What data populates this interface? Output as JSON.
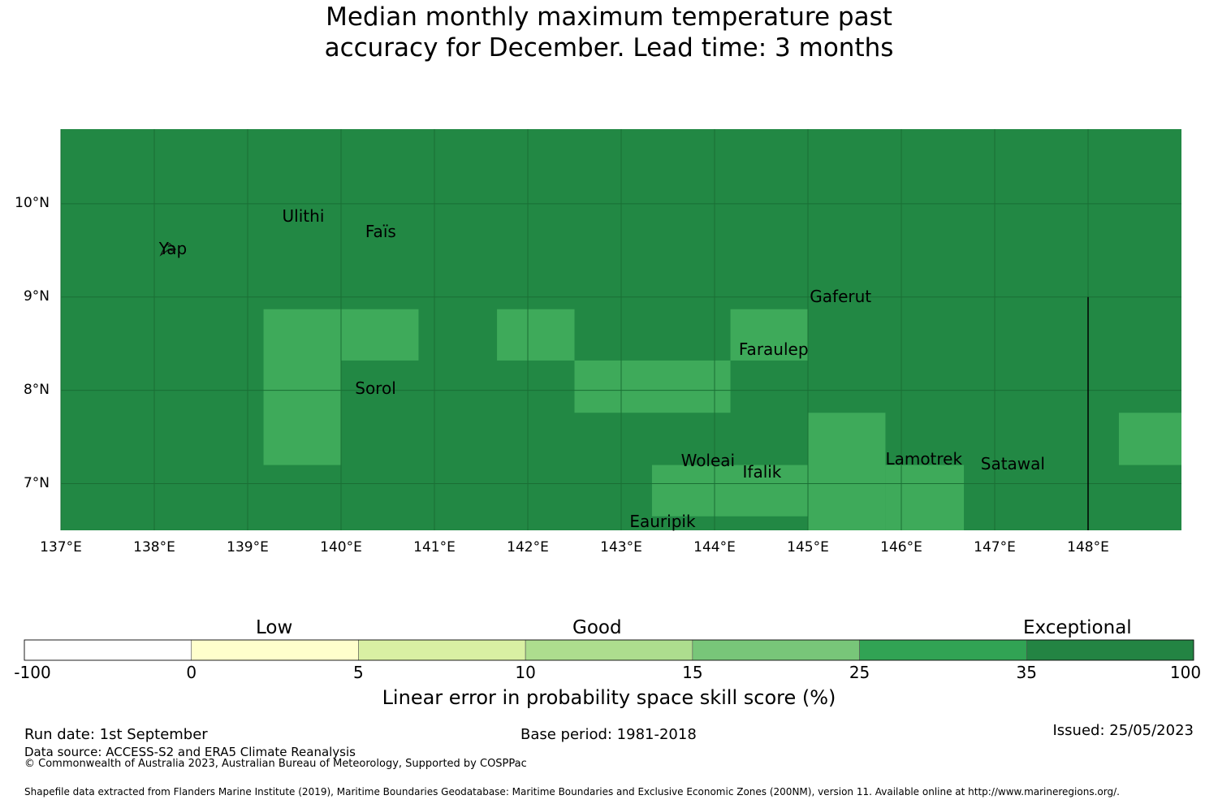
{
  "title": {
    "line1": "Median monthly maximum temperature past",
    "line2": "accuracy for December. Lead time: 3 months"
  },
  "map": {
    "lon_range": [
      137.0,
      149.0
    ],
    "lat_range": [
      6.5,
      10.8
    ],
    "lat_ticks": [
      {
        "value": 10,
        "label": "10°N"
      },
      {
        "value": 9,
        "label": "9°N"
      },
      {
        "value": 8,
        "label": "8°N"
      },
      {
        "value": 7,
        "label": "7°N"
      }
    ],
    "lon_ticks": [
      {
        "value": 137,
        "label": "137°E"
      },
      {
        "value": 138,
        "label": "138°E"
      },
      {
        "value": 139,
        "label": "139°E"
      },
      {
        "value": 140,
        "label": "140°E"
      },
      {
        "value": 141,
        "label": "141°E"
      },
      {
        "value": 142,
        "label": "142°E"
      },
      {
        "value": 143,
        "label": "143°E"
      },
      {
        "value": 144,
        "label": "144°E"
      },
      {
        "value": 145,
        "label": "145°E"
      },
      {
        "value": 146,
        "label": "146°E"
      },
      {
        "value": 147,
        "label": "147°E"
      },
      {
        "value": 148,
        "label": "148°E"
      }
    ],
    "background_category": "Exceptional (35-100)",
    "background_color": "#228844",
    "cell_color": "#3eaa5a",
    "grid_line_color": "#1a6e34",
    "cells_25_to_35": [
      {
        "lon": [
          139.17,
          140.0
        ],
        "lat": [
          7.2,
          8.87
        ]
      },
      {
        "lon": [
          140.0,
          140.83
        ],
        "lat": [
          8.32,
          8.87
        ]
      },
      {
        "lon": [
          141.67,
          142.5
        ],
        "lat": [
          8.32,
          8.87
        ]
      },
      {
        "lon": [
          142.5,
          144.17
        ],
        "lat": [
          7.76,
          8.32
        ]
      },
      {
        "lon": [
          144.17,
          145.0
        ],
        "lat": [
          8.32,
          8.87
        ]
      },
      {
        "lon": [
          145.0,
          145.83
        ],
        "lat": [
          6.5,
          7.76
        ]
      },
      {
        "lon": [
          145.83,
          146.67
        ],
        "lat": [
          6.5,
          7.2
        ]
      },
      {
        "lon": [
          143.33,
          145.0
        ],
        "lat": [
          6.65,
          7.2
        ]
      },
      {
        "lon": [
          148.33,
          149.0
        ],
        "lat": [
          7.2,
          7.76
        ]
      }
    ],
    "boundary_line": {
      "lon": 148.0,
      "lat": [
        6.5,
        9.0
      ]
    },
    "places": [
      {
        "name": "Yap",
        "lon": 138.05,
        "lat": 9.52
      },
      {
        "name": "Ulithi",
        "lon": 139.37,
        "lat": 9.87
      },
      {
        "name": "Faïs",
        "lon": 140.26,
        "lat": 9.7
      },
      {
        "name": "Gaferut",
        "lon": 145.02,
        "lat": 9.01
      },
      {
        "name": "Faraulep",
        "lon": 144.26,
        "lat": 8.44
      },
      {
        "name": "Sorol",
        "lon": 140.15,
        "lat": 8.02
      },
      {
        "name": "Woleai",
        "lon": 143.64,
        "lat": 7.25
      },
      {
        "name": "Ifalik",
        "lon": 144.3,
        "lat": 7.13
      },
      {
        "name": "Lamotrek",
        "lon": 145.83,
        "lat": 7.27
      },
      {
        "name": "Satawal",
        "lon": 146.85,
        "lat": 7.21
      },
      {
        "name": "Eauripik",
        "lon": 143.09,
        "lat": 6.6
      }
    ]
  },
  "colorbar": {
    "categories": {
      "low": "Low",
      "good": "Good",
      "exceptional": "Exceptional"
    },
    "bins": [
      {
        "from": -100,
        "to": 0,
        "color": "#ffffff"
      },
      {
        "from": 0,
        "to": 5,
        "color": "#ffffcc"
      },
      {
        "from": 5,
        "to": 10,
        "color": "#d9f0a3"
      },
      {
        "from": 10,
        "to": 15,
        "color": "#addd8e"
      },
      {
        "from": 15,
        "to": 25,
        "color": "#78c679"
      },
      {
        "from": 25,
        "to": 35,
        "color": "#31a354"
      },
      {
        "from": 35,
        "to": 100,
        "color": "#238443"
      }
    ],
    "tick_labels": [
      "-100",
      "0",
      "5",
      "10",
      "15",
      "25",
      "35",
      "100"
    ],
    "title": "Linear error in probability space skill score (%)"
  },
  "footer": {
    "run_date": "Run date: 1st September",
    "base_period": "Base period: 1981-2018",
    "issued": "Issued: 25/05/2023",
    "data_source": "Data source: ACCESS-S2 and ERA5 Climate Reanalysis",
    "copyright": "© Commonwealth of Australia 2023, Australian Bureau of Meteorology, Supported by COSPPac",
    "shapefile": "Shapefile data extracted from Flanders Marine Institute (2019), Maritime Boundaries Geodatabase: Maritime Boundaries and Exclusive Economic Zones (200NM), version 11. Available online at http://www.marineregions.org/."
  }
}
